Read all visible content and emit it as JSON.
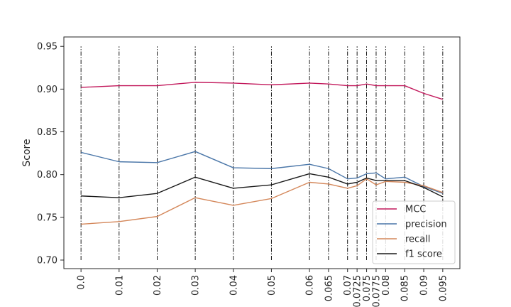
{
  "chart_data": {
    "type": "line",
    "xlabel": "",
    "ylabel": "Score",
    "ylim": [
      0.69,
      0.961
    ],
    "grid": "vertical dash-dot lines at each x tick",
    "legend_position": "lower-right",
    "x": [
      0.0,
      0.01,
      0.02,
      0.03,
      0.04,
      0.05,
      0.06,
      0.065,
      0.07,
      0.0725,
      0.075,
      0.0775,
      0.08,
      0.085,
      0.09,
      0.095
    ],
    "x_tick_labels": [
      "0.0",
      "0.01",
      "0.02",
      "0.03",
      "0.04",
      "0.05",
      "0.06",
      "0.065",
      "0.07",
      "0.0725",
      "0.075",
      "0.0775",
      "0.08",
      "0.085",
      "0.09",
      "0.095"
    ],
    "y_ticks": [
      0.7,
      0.75,
      0.8,
      0.85,
      0.9,
      0.95
    ],
    "y_tick_labels": [
      "0.70",
      "0.75",
      "0.80",
      "0.85",
      "0.90",
      "0.95"
    ],
    "series": [
      {
        "name": "MCC",
        "color": "#c2185b",
        "values": [
          0.902,
          0.904,
          0.904,
          0.908,
          0.907,
          0.905,
          0.907,
          0.906,
          0.904,
          0.904,
          0.906,
          0.904,
          0.904,
          0.904,
          0.895,
          0.888
        ]
      },
      {
        "name": "precision",
        "color": "#4a76a8",
        "values": [
          0.826,
          0.815,
          0.814,
          0.827,
          0.808,
          0.807,
          0.812,
          0.807,
          0.795,
          0.796,
          0.801,
          0.802,
          0.795,
          0.797,
          0.786,
          0.778
        ]
      },
      {
        "name": "recall",
        "color": "#d4875a",
        "values": [
          0.742,
          0.745,
          0.751,
          0.773,
          0.764,
          0.772,
          0.791,
          0.789,
          0.784,
          0.787,
          0.795,
          0.788,
          0.792,
          0.791,
          0.787,
          0.779
        ]
      },
      {
        "name": "f1 score",
        "color": "#1a1a1a",
        "values": [
          0.775,
          0.773,
          0.778,
          0.797,
          0.784,
          0.788,
          0.801,
          0.797,
          0.789,
          0.791,
          0.796,
          0.793,
          0.793,
          0.793,
          0.785,
          0.774
        ]
      }
    ]
  }
}
